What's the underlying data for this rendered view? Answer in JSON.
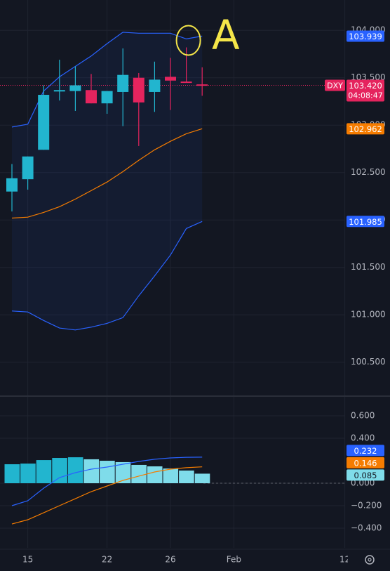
{
  "chart_data": [
    {
      "type": "candlestick",
      "symbol": "DXY",
      "countdown": "04:08:47",
      "annotation": "A",
      "up_color": "#22b5cf",
      "down_color": "#e5245e",
      "annotation_color": "#f5e649",
      "categories": [
        null,
        "15",
        null,
        null,
        null,
        null,
        "22",
        null,
        null,
        null,
        "26",
        null,
        null,
        null,
        "Feb",
        null,
        null,
        null,
        null,
        null,
        null,
        "12"
      ],
      "open": [
        102.3,
        102.43,
        102.74,
        103.36,
        103.36,
        103.37,
        103.23,
        103.35,
        103.5,
        103.35,
        103.51,
        103.46,
        103.43,
        null,
        null,
        null,
        null,
        null,
        null,
        null,
        null,
        null
      ],
      "high": [
        102.59,
        102.67,
        103.42,
        103.69,
        103.62,
        103.54,
        103.36,
        103.81,
        103.55,
        103.67,
        103.71,
        103.82,
        103.61,
        null,
        null,
        null,
        null,
        null,
        null,
        null,
        null,
        null
      ],
      "low": [
        102.09,
        102.32,
        102.74,
        103.26,
        103.15,
        103.23,
        103.12,
        102.99,
        102.78,
        103.14,
        103.16,
        103.45,
        103.31,
        null,
        null,
        null,
        null,
        null,
        null,
        null,
        null,
        null
      ],
      "close": [
        102.44,
        102.67,
        103.32,
        103.37,
        103.42,
        103.23,
        103.36,
        103.53,
        103.24,
        103.48,
        103.47,
        103.45,
        103.42,
        null,
        null,
        null,
        null,
        null,
        null,
        null,
        null,
        null
      ],
      "close_value_labels": [
        null,
        null,
        null,
        null,
        null,
        null,
        null,
        null,
        null,
        null,
        null,
        null,
        "103.420",
        null,
        null,
        null,
        null,
        null,
        null,
        null,
        null,
        null
      ],
      "series": [
        {
          "color": "#2962ff",
          "values": [
            102.98,
            103.01,
            103.36,
            103.51,
            103.62,
            103.73,
            103.86,
            103.98,
            103.97,
            103.97,
            103.97,
            103.91,
            103.939,
            null,
            null,
            null,
            null,
            null,
            null,
            null,
            null,
            null
          ],
          "value_labels": [
            null,
            null,
            null,
            null,
            null,
            null,
            null,
            null,
            null,
            null,
            null,
            null,
            "103.939",
            null,
            null,
            null,
            null,
            null,
            null,
            null,
            null,
            null
          ]
        },
        {
          "color": "#f57c00",
          "values": [
            102.02,
            102.03,
            102.08,
            102.14,
            102.22,
            102.31,
            102.4,
            102.51,
            102.63,
            102.74,
            102.83,
            102.91,
            102.962,
            null,
            null,
            null,
            null,
            null,
            null,
            null,
            null,
            null
          ],
          "value_labels": [
            null,
            null,
            null,
            null,
            null,
            null,
            null,
            null,
            null,
            null,
            null,
            null,
            "102.962",
            null,
            null,
            null,
            null,
            null,
            null,
            null,
            null,
            null
          ]
        },
        {
          "color": "#2962ff",
          "values": [
            101.04,
            101.03,
            100.94,
            100.86,
            100.84,
            100.87,
            100.91,
            100.97,
            101.2,
            101.41,
            101.63,
            101.91,
            101.985,
            null,
            null,
            null,
            null,
            null,
            null,
            null,
            null,
            null
          ],
          "value_labels": [
            null,
            null,
            null,
            null,
            null,
            null,
            null,
            null,
            null,
            null,
            null,
            null,
            "101.985",
            null,
            null,
            null,
            null,
            null,
            null,
            null,
            null,
            null
          ]
        }
      ],
      "ylim": [
        100.15,
        104.32
      ],
      "yticks": [
        {
          "value": 104,
          "label": "104.000"
        },
        {
          "value": 103.5,
          "label": "103.500"
        },
        {
          "value": 103,
          "label": "103.000"
        },
        {
          "value": 102.5,
          "label": "102.500"
        },
        {
          "value": 102,
          "label": "102.000"
        },
        {
          "value": 101.5,
          "label": "101.500"
        },
        {
          "value": 101,
          "label": "101.000"
        },
        {
          "value": 100.5,
          "label": "100.500"
        }
      ],
      "grid": true
    },
    {
      "type": "macd",
      "histogram": {
        "values": [
          0.169,
          0.175,
          0.206,
          0.225,
          0.231,
          0.213,
          0.2,
          0.188,
          0.163,
          0.15,
          0.131,
          0.113,
          0.085
        ],
        "colors": [
          "#22b5cf",
          "#22b5cf",
          "#22b5cf",
          "#22b5cf",
          "#22b5cf",
          "#7fdcea",
          "#7fdcea",
          "#7fdcea",
          "#7fdcea",
          "#7fdcea",
          "#7fdcea",
          "#7fdcea",
          "#7fdcea"
        ],
        "value_labels": [
          null,
          null,
          null,
          null,
          null,
          null,
          null,
          null,
          null,
          null,
          null,
          null,
          "0.085"
        ]
      },
      "series": [
        {
          "color": "#2962ff",
          "values": [
            -0.2,
            -0.156,
            -0.044,
            0.05,
            0.094,
            0.125,
            0.144,
            0.169,
            0.194,
            0.213,
            0.225,
            0.231,
            0.232
          ],
          "value_labels": [
            null,
            null,
            null,
            null,
            null,
            null,
            null,
            null,
            null,
            null,
            null,
            null,
            "0.232"
          ]
        },
        {
          "color": "#f57c00",
          "values": [
            -0.363,
            -0.325,
            -0.263,
            -0.2,
            -0.138,
            -0.075,
            -0.025,
            0.025,
            0.063,
            0.1,
            0.125,
            0.138,
            0.146
          ],
          "value_labels": [
            null,
            null,
            null,
            null,
            null,
            null,
            null,
            null,
            null,
            null,
            null,
            null,
            "0.146"
          ]
        }
      ],
      "ylim": [
        -0.575,
        0.769
      ],
      "yticks": [
        {
          "value": 0.6,
          "label": "0.600"
        },
        {
          "value": 0.4,
          "label": "0.400"
        },
        {
          "value": 0,
          "label": "0.000"
        },
        {
          "value": -0.2,
          "label": "−0.200"
        },
        {
          "value": -0.4,
          "label": "−0.400"
        }
      ],
      "grid": true
    }
  ]
}
